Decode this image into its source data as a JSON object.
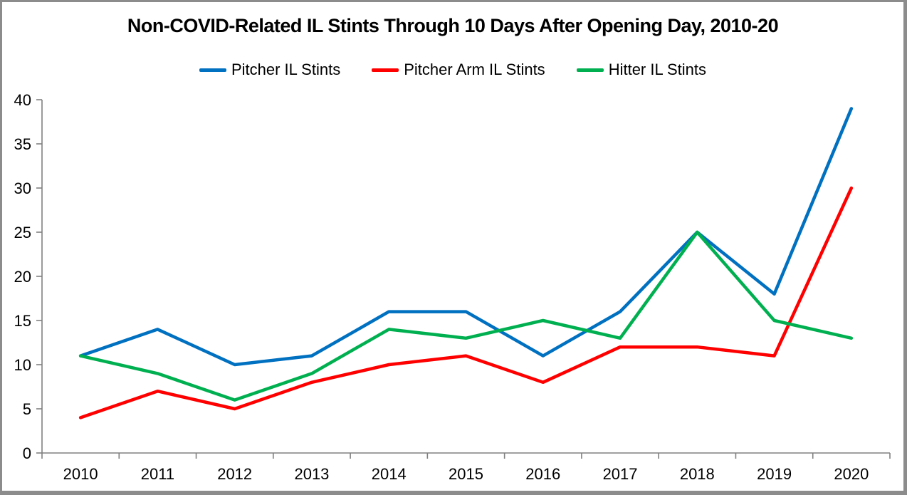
{
  "chart_data": {
    "type": "line",
    "title": "Non-COVID-Related IL Stints Through 10 Days After Opening Day, 2010-20",
    "categories": [
      "2010",
      "2011",
      "2012",
      "2013",
      "2014",
      "2015",
      "2016",
      "2017",
      "2018",
      "2019",
      "2020"
    ],
    "series": [
      {
        "name": "Pitcher IL Stints",
        "color": "#0070C0",
        "values": [
          11,
          14,
          10,
          11,
          16,
          16,
          11,
          16,
          25,
          18,
          39
        ]
      },
      {
        "name": "Pitcher Arm IL Stints",
        "color": "#FF0000",
        "values": [
          4,
          7,
          5,
          8,
          10,
          11,
          8,
          12,
          12,
          11,
          30
        ]
      },
      {
        "name": "Hitter IL Stints",
        "color": "#00B050",
        "values": [
          11,
          9,
          6,
          9,
          14,
          13,
          15,
          13,
          25,
          15,
          13
        ]
      }
    ],
    "xlabel": "",
    "ylabel": "",
    "ylim": [
      0,
      40
    ],
    "y_ticks": [
      0,
      5,
      10,
      15,
      20,
      25,
      30,
      35,
      40
    ],
    "legend_position": "top",
    "grid": "off",
    "axis_color": "#808080",
    "label_color": "#000000",
    "line_width": 4.5
  }
}
